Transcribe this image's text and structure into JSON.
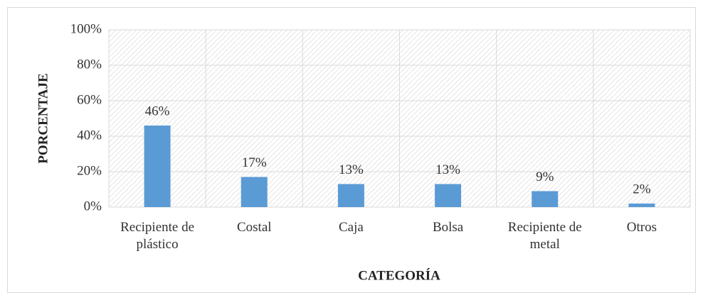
{
  "chart_data": {
    "type": "bar",
    "x_label": "CATEGORÍA",
    "y_label": "PORCENTAJE",
    "categories": [
      "Recipiente de plástico",
      "Costal",
      "Caja",
      "Bolsa",
      "Recipiente de metal",
      "Otros"
    ],
    "values": [
      46,
      17,
      13,
      13,
      9,
      2
    ],
    "value_labels": [
      "46%",
      "17%",
      "13%",
      "13%",
      "9%",
      "2%"
    ],
    "color": "#5b9bd5",
    "ylim": [
      0,
      100
    ],
    "yticks": [
      {
        "value": 0,
        "label": "0%"
      },
      {
        "value": 20,
        "label": "20%"
      },
      {
        "value": 40,
        "label": "40%"
      },
      {
        "value": 60,
        "label": "60%"
      },
      {
        "value": 80,
        "label": "80%"
      },
      {
        "value": 100,
        "label": "100%"
      }
    ],
    "grid": true
  }
}
